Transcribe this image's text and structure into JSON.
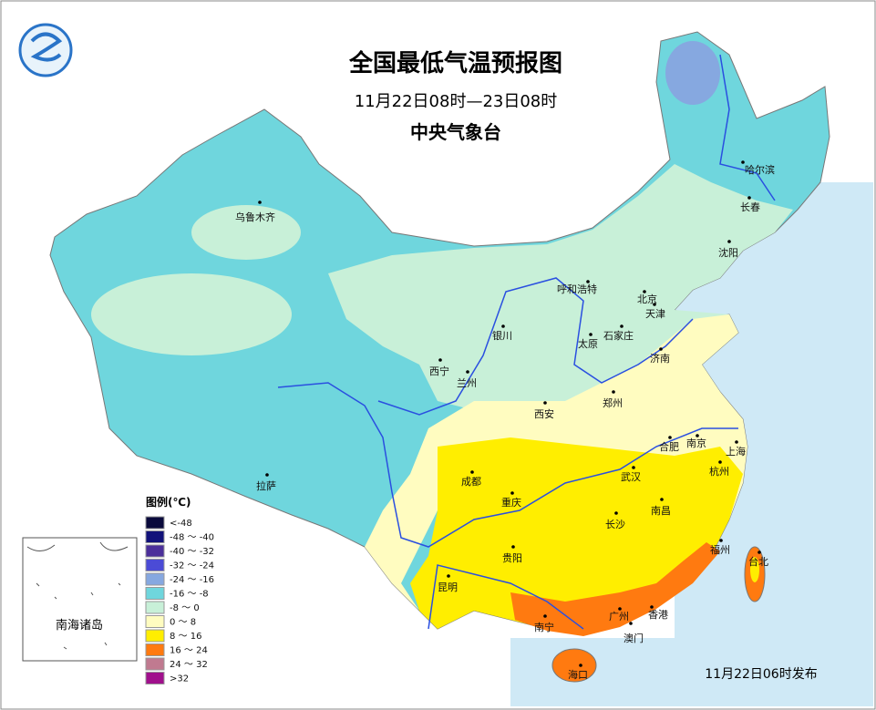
{
  "header": {
    "title": "全国最低气温预报图",
    "subtitle": "11月22日08时—23日08时",
    "agency": "中央气象台"
  },
  "cities": [
    "乌鲁木齐",
    "哈尔滨",
    "长春",
    "沈阳",
    "呼和浩特",
    "北京",
    "天津",
    "石家庄",
    "太原",
    "济南",
    "银川",
    "西宁",
    "兰州",
    "西安",
    "郑州",
    "合肥",
    "南京",
    "上海",
    "杭州",
    "武汉",
    "成都",
    "重庆",
    "长沙",
    "南昌",
    "福州",
    "台北",
    "贵阳",
    "昆明",
    "拉萨",
    "南宁",
    "广州",
    "香港",
    "澳门",
    "海口"
  ],
  "legend": {
    "title": "图例(℃)",
    "items": [
      {
        "label": "<-48",
        "color": "#0a0a3c"
      },
      {
        "label": "-48 ～ -40",
        "color": "#12127a"
      },
      {
        "label": "-40 ～ -32",
        "color": "#4b2f9a"
      },
      {
        "label": "-32 ～ -24",
        "color": "#4b4bd6"
      },
      {
        "label": "-24 ～ -16",
        "color": "#86a8e0"
      },
      {
        "label": "-16 ～ -8",
        "color": "#6fd6dd"
      },
      {
        "label": "-8 ～ 0",
        "color": "#c8f0d8"
      },
      {
        "label": "0 ～ 8",
        "color": "#fffcc0"
      },
      {
        "label": "8 ～ 16",
        "color": "#ffee00"
      },
      {
        "label": "16 ～ 24",
        "color": "#ff7a10"
      },
      {
        "label": "24 ～ 32",
        "color": "#c07a90"
      },
      {
        "label": ">32",
        "color": "#a0108c"
      }
    ]
  },
  "inset": {
    "label": "南海诸岛"
  },
  "footer": {
    "issued": "11月22日06时发布"
  }
}
